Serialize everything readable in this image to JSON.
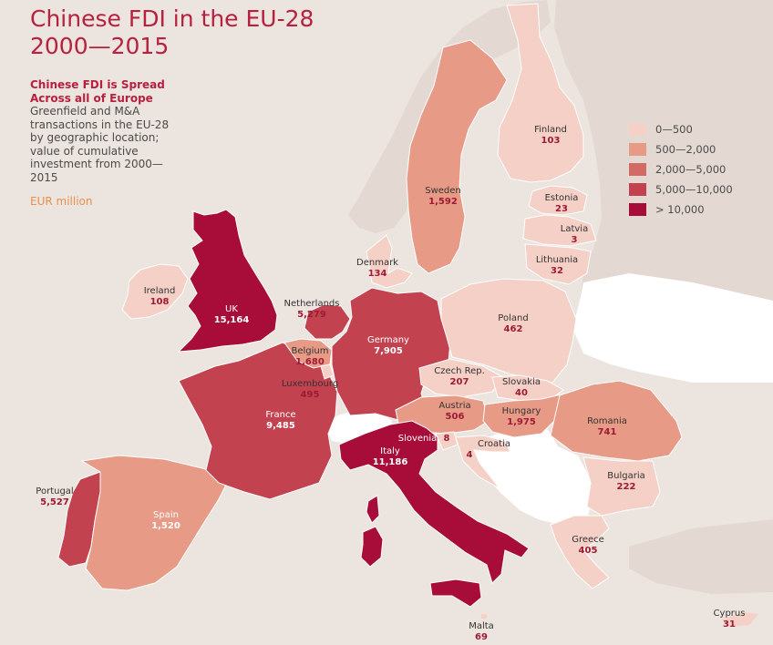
{
  "title": {
    "line1": "Chinese FDI in the EU-28",
    "line2": "2000—2015"
  },
  "subtitle": {
    "line1": "Chinese FDI is Spread",
    "line2": "Across all of Europe"
  },
  "description": "Greenfield and M&A transactions in the EU-28 by geographic location; value of cumulative investment from 2000—2015",
  "unit": "EUR million",
  "colors": {
    "background": "#ece4de",
    "non_eu": "#ffffff",
    "title": "#b8203f",
    "unit": "#e7904e",
    "class1": "#f4d0c6",
    "class2": "#e79a86",
    "class3": "#d26b66",
    "class4": "#c3424f",
    "class5": "#a80d3a"
  },
  "legend": [
    {
      "label": "0—500",
      "color": "#f4d0c6"
    },
    {
      "label": "500—2,000",
      "color": "#e79a86"
    },
    {
      "label": "2,000—5,000",
      "color": "#d26b66"
    },
    {
      "label": "5,000—10,000",
      "color": "#c3424f"
    },
    {
      "label": "> 10,000",
      "color": "#a80d3a"
    }
  ],
  "countries": [
    {
      "name": "UK",
      "value": "15,164",
      "class": 5
    },
    {
      "name": "Italy",
      "value": "11,186",
      "class": 5
    },
    {
      "name": "France",
      "value": "9,485",
      "class": 4
    },
    {
      "name": "Germany",
      "value": "7,905",
      "class": 4
    },
    {
      "name": "Portugal",
      "value": "5,527",
      "class": 4
    },
    {
      "name": "Netherlands",
      "value": "5,279",
      "class": 4
    },
    {
      "name": "Hungary",
      "value": "1,975",
      "class": 2
    },
    {
      "name": "Belgium",
      "value": "1,680",
      "class": 2
    },
    {
      "name": "Sweden",
      "value": "1,592",
      "class": 2
    },
    {
      "name": "Spain",
      "value": "1,520",
      "class": 2
    },
    {
      "name": "Romania",
      "value": "741",
      "class": 2
    },
    {
      "name": "Austria",
      "value": "506",
      "class": 2
    },
    {
      "name": "Luxembourg",
      "value": "495",
      "class": 1
    },
    {
      "name": "Poland",
      "value": "462",
      "class": 1
    },
    {
      "name": "Greece",
      "value": "405",
      "class": 1
    },
    {
      "name": "Bulgaria",
      "value": "222",
      "class": 1
    },
    {
      "name": "Czech Rep.",
      "value": "207",
      "class": 1
    },
    {
      "name": "Denmark",
      "value": "134",
      "class": 1
    },
    {
      "name": "Ireland",
      "value": "108",
      "class": 1
    },
    {
      "name": "Finland",
      "value": "103",
      "class": 1
    },
    {
      "name": "Malta",
      "value": "69",
      "class": 1
    },
    {
      "name": "Slovakia",
      "value": "40",
      "class": 1
    },
    {
      "name": "Lithuania",
      "value": "32",
      "class": 1
    },
    {
      "name": "Cyprus",
      "value": "31",
      "class": 1
    },
    {
      "name": "Estonia",
      "value": "23",
      "class": 1
    },
    {
      "name": "Slovenia",
      "value": "8",
      "class": 1
    },
    {
      "name": "Croatia",
      "value": "4",
      "class": 1
    },
    {
      "name": "Latvia",
      "value": "3",
      "class": 1
    }
  ]
}
